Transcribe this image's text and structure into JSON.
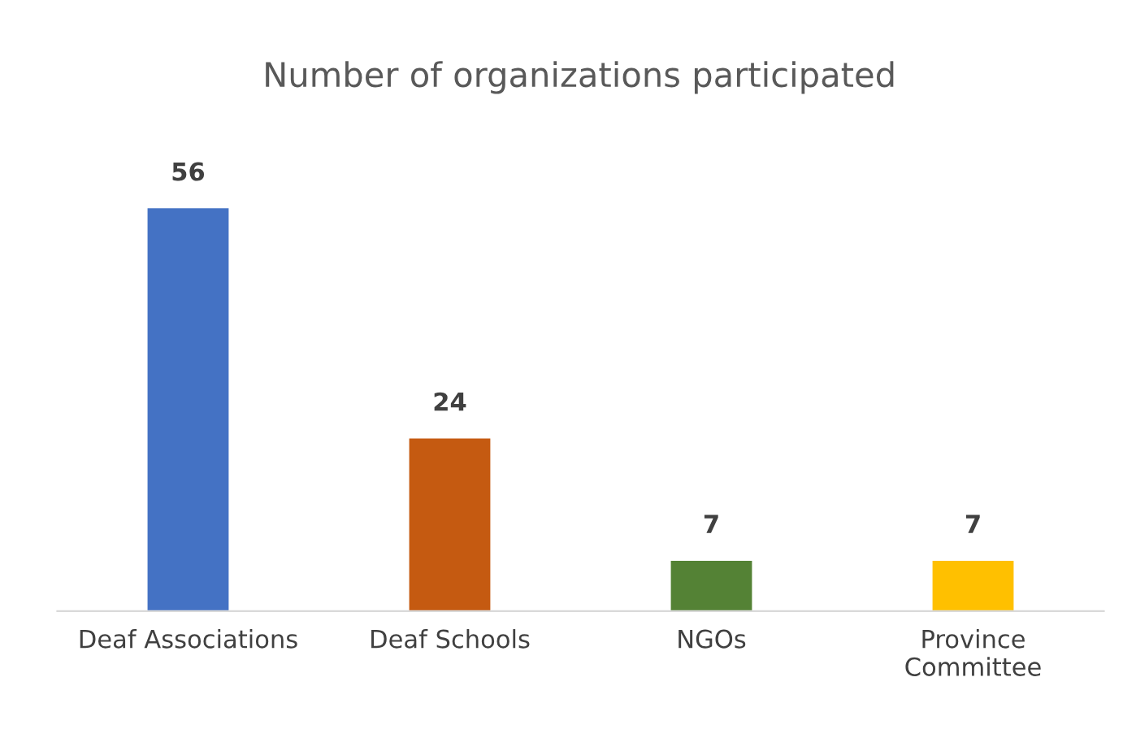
{
  "chart_data": {
    "type": "bar",
    "title": "Number of organizations participated",
    "categories": [
      "Deaf Associations",
      "Deaf Schools",
      "NGOs",
      "Province\nCommittee"
    ],
    "values": [
      56,
      24,
      7,
      7
    ],
    "colors": [
      "#4472c4",
      "#c55a11",
      "#548235",
      "#ffc000"
    ],
    "data_labels": true
  }
}
